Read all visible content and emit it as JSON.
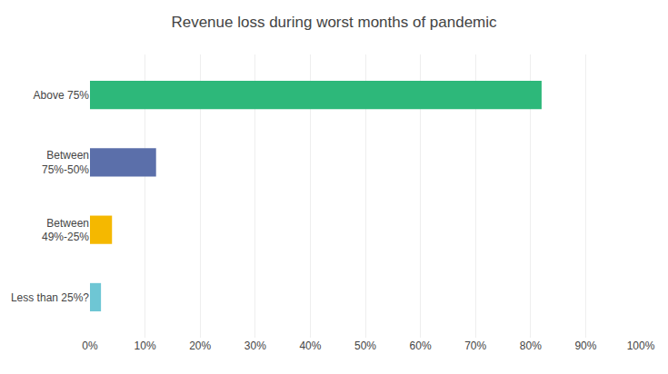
{
  "chart_data": {
    "type": "bar",
    "orientation": "horizontal",
    "title": "Revenue loss during worst months of pandemic",
    "categories": [
      "Less than 25%?",
      "Between\n49%-25%",
      "Between\n75%-50%",
      "Above 75%"
    ],
    "values": [
      2,
      4,
      12,
      82
    ],
    "colors": [
      "#6ec6d4",
      "#f5b800",
      "#5b6faa",
      "#2db87a"
    ],
    "xlim": [
      0,
      100
    ],
    "xticks": [
      {
        "value": 0,
        "label": "0%"
      },
      {
        "value": 10,
        "label": "10%"
      },
      {
        "value": 20,
        "label": "20%"
      },
      {
        "value": 30,
        "label": "30%"
      },
      {
        "value": 40,
        "label": "40%"
      },
      {
        "value": 50,
        "label": "50%"
      },
      {
        "value": 60,
        "label": "60%"
      },
      {
        "value": 70,
        "label": "70%"
      },
      {
        "value": 80,
        "label": "80%"
      },
      {
        "value": 90,
        "label": "90%"
      },
      {
        "value": 100,
        "label": "100%"
      }
    ],
    "grid": true
  }
}
